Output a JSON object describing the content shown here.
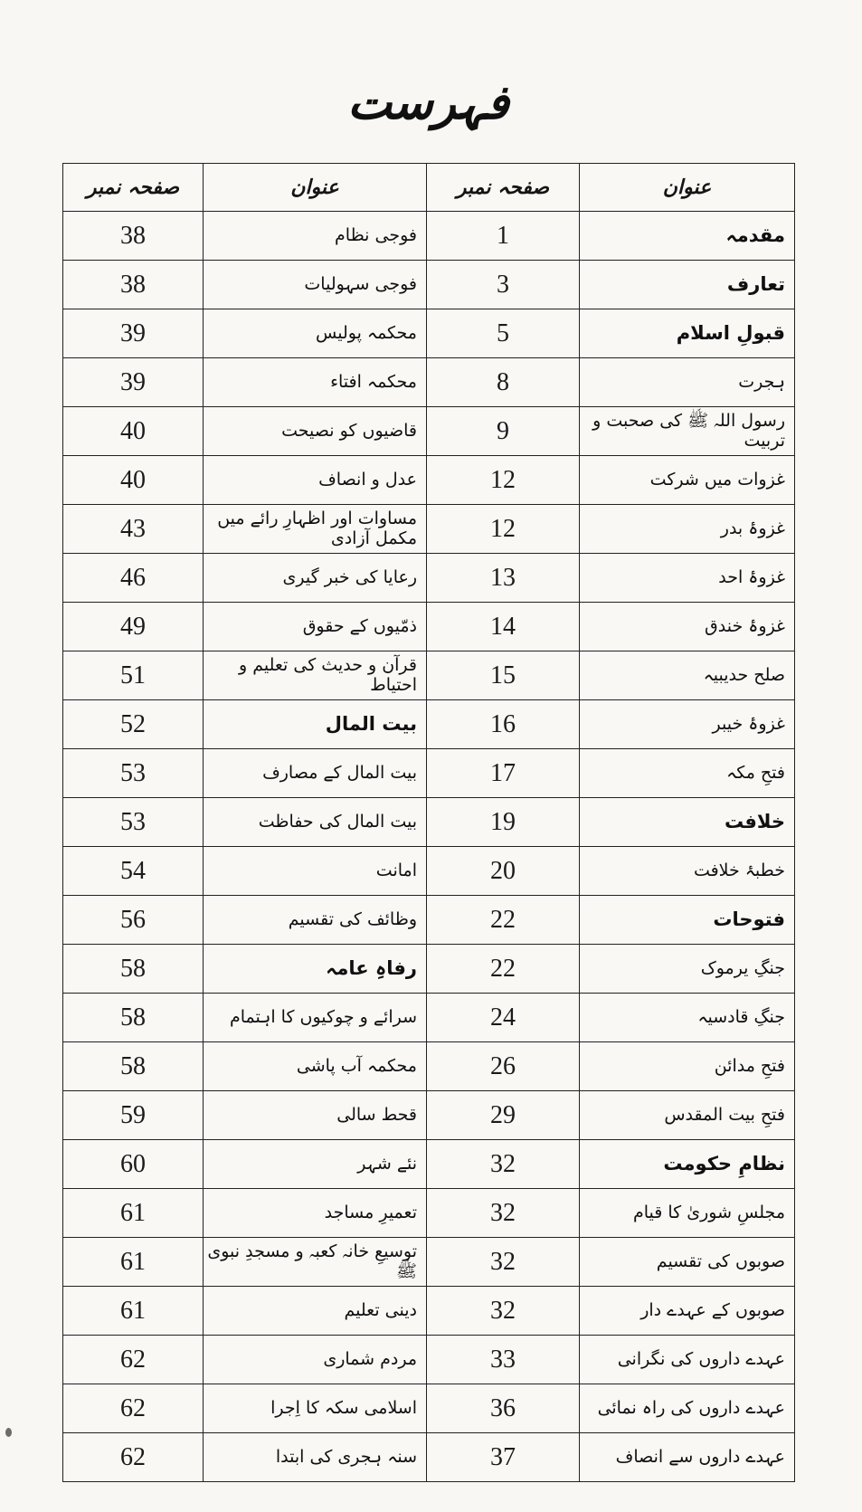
{
  "page_title": "فہرست",
  "table": {
    "headers": {
      "page_col": "صفحہ نمبر",
      "title_col": "عنوان"
    },
    "rows": [
      {
        "left_page": "38",
        "left_title": "فوجی نظام",
        "left_bold": false,
        "right_page": "1",
        "right_title": "مقدمہ",
        "right_bold": true
      },
      {
        "left_page": "38",
        "left_title": "فوجی سہولیات",
        "left_bold": false,
        "right_page": "3",
        "right_title": "تعارف",
        "right_bold": true
      },
      {
        "left_page": "39",
        "left_title": "محکمہ پولیس",
        "left_bold": false,
        "right_page": "5",
        "right_title": "قبولِ اسلام",
        "right_bold": true
      },
      {
        "left_page": "39",
        "left_title": "محکمہ افتاء",
        "left_bold": false,
        "right_page": "8",
        "right_title": "ہجرت",
        "right_bold": false
      },
      {
        "left_page": "40",
        "left_title": "قاضیوں کو نصیحت",
        "left_bold": false,
        "right_page": "9",
        "right_title": "رسول اللہ ﷺ کی صحبت و تربیت",
        "right_bold": false
      },
      {
        "left_page": "40",
        "left_title": "عدل و انصاف",
        "left_bold": false,
        "right_page": "12",
        "right_title": "غزوات میں شرکت",
        "right_bold": false
      },
      {
        "left_page": "43",
        "left_title": "مساوات اور اظہارِ رائے میں مکمل آزادی",
        "left_bold": false,
        "right_page": "12",
        "right_title": "غزوۂ بدر",
        "right_bold": false
      },
      {
        "left_page": "46",
        "left_title": "رعایا کی خبر گیری",
        "left_bold": false,
        "right_page": "13",
        "right_title": "غزوۂ احد",
        "right_bold": false
      },
      {
        "left_page": "49",
        "left_title": "ذمّیوں کے حقوق",
        "left_bold": false,
        "right_page": "14",
        "right_title": "غزوۂ خندق",
        "right_bold": false
      },
      {
        "left_page": "51",
        "left_title": "قرآن و حدیث کی تعلیم و احتیاط",
        "left_bold": false,
        "right_page": "15",
        "right_title": "صلح حدیبیہ",
        "right_bold": false
      },
      {
        "left_page": "52",
        "left_title": "بیت المال",
        "left_bold": true,
        "right_page": "16",
        "right_title": "غزوۂ خیبر",
        "right_bold": false
      },
      {
        "left_page": "53",
        "left_title": "بیت المال کے مصارف",
        "left_bold": false,
        "right_page": "17",
        "right_title": "فتحِ مکہ",
        "right_bold": false
      },
      {
        "left_page": "53",
        "left_title": "بیت المال کی حفاظت",
        "left_bold": false,
        "right_page": "19",
        "right_title": "خلافت",
        "right_bold": true
      },
      {
        "left_page": "54",
        "left_title": "امانت",
        "left_bold": false,
        "right_page": "20",
        "right_title": "خطبۂ خلافت",
        "right_bold": false
      },
      {
        "left_page": "56",
        "left_title": "وظائف کی تقسیم",
        "left_bold": false,
        "right_page": "22",
        "right_title": "فتوحات",
        "right_bold": true
      },
      {
        "left_page": "58",
        "left_title": "رفاہِ عامہ",
        "left_bold": true,
        "right_page": "22",
        "right_title": "جنگِ یرموک",
        "right_bold": false
      },
      {
        "left_page": "58",
        "left_title": "سرائے و چوکیوں کا اہتمام",
        "left_bold": false,
        "right_page": "24",
        "right_title": "جنگِ قادسیہ",
        "right_bold": false
      },
      {
        "left_page": "58",
        "left_title": "محکمہ آب پاشی",
        "left_bold": false,
        "right_page": "26",
        "right_title": "فتحِ مدائن",
        "right_bold": false
      },
      {
        "left_page": "59",
        "left_title": "قحط سالی",
        "left_bold": false,
        "right_page": "29",
        "right_title": "فتحِ بیت المقدس",
        "right_bold": false
      },
      {
        "left_page": "60",
        "left_title": "نئے شہر",
        "left_bold": false,
        "right_page": "32",
        "right_title": "نظامِ حکومت",
        "right_bold": true
      },
      {
        "left_page": "61",
        "left_title": "تعمیرِ مساجد",
        "left_bold": false,
        "right_page": "32",
        "right_title": "مجلسِ شوریٰ کا قیام",
        "right_bold": false
      },
      {
        "left_page": "61",
        "left_title": "توسیعِ خانہ کعبہ و مسجدِ نبوی ﷺ",
        "left_bold": false,
        "right_page": "32",
        "right_title": "صوبوں کی تقسیم",
        "right_bold": false
      },
      {
        "left_page": "61",
        "left_title": "دینی تعلیم",
        "left_bold": false,
        "right_page": "32",
        "right_title": "صوبوں کے عہدے دار",
        "right_bold": false
      },
      {
        "left_page": "62",
        "left_title": "مردم شماری",
        "left_bold": false,
        "right_page": "33",
        "right_title": "عہدے داروں کی نگرانی",
        "right_bold": false
      },
      {
        "left_page": "62",
        "left_title": "اسلامی سکہ کا اِجرا",
        "left_bold": false,
        "right_page": "36",
        "right_title": "عہدے داروں کی راہ نمائی",
        "right_bold": false
      },
      {
        "left_page": "62",
        "left_title": "سنہ ہجری کی ابتدا",
        "left_bold": false,
        "right_page": "37",
        "right_title": "عہدے داروں سے انصاف",
        "right_bold": false
      }
    ]
  }
}
